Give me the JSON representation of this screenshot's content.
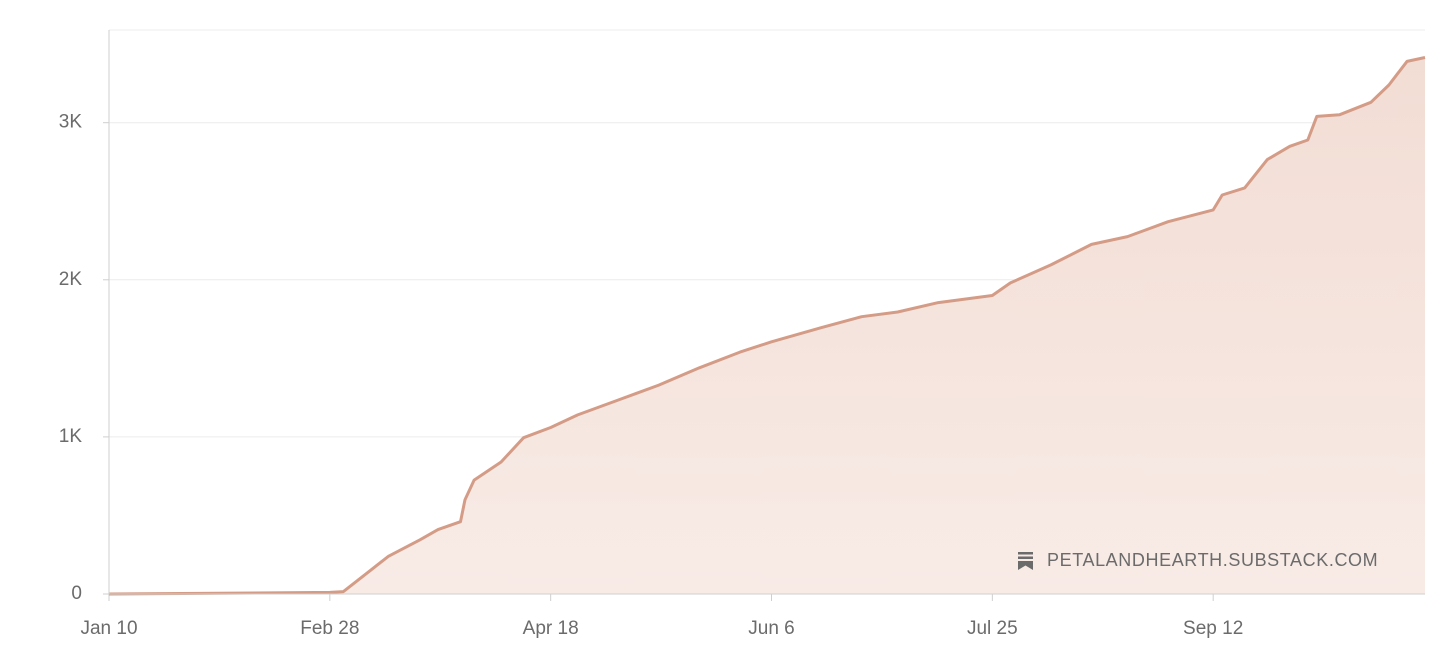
{
  "chart_data": {
    "type": "area",
    "watermark": "PETALANDHEARTH.SUBSTACK.COM",
    "x": [
      0,
      49,
      52,
      58,
      62,
      69,
      73,
      78,
      79,
      81,
      87,
      92,
      98,
      104,
      113,
      122,
      131,
      140,
      147,
      158,
      167,
      175,
      184,
      196,
      200,
      209,
      218,
      226,
      235,
      245,
      247,
      252,
      257,
      262,
      266,
      268,
      273,
      280,
      284,
      288,
      292
    ],
    "values": [
      0,
      10,
      15,
      150,
      240,
      345,
      410,
      460,
      600,
      725,
      840,
      995,
      1060,
      1140,
      1235,
      1330,
      1440,
      1540,
      1605,
      1695,
      1765,
      1795,
      1855,
      1900,
      1980,
      2095,
      2225,
      2275,
      2370,
      2445,
      2540,
      2585,
      2765,
      2850,
      2890,
      3040,
      3050,
      3130,
      3240,
      3390,
      3415
    ],
    "color": "#d49c86",
    "xlim": [
      0,
      292
    ],
    "xticks": [
      {
        "value": 0,
        "label": "Jan 10"
      },
      {
        "value": 49,
        "label": "Feb 28"
      },
      {
        "value": 98,
        "label": "Apr 18"
      },
      {
        "value": 147,
        "label": "Jun 6"
      },
      {
        "value": 196,
        "label": "Jul 25"
      },
      {
        "value": 245,
        "label": "Sep 12"
      }
    ],
    "ylim": [
      0,
      3590
    ],
    "yticks": [
      0,
      {
        "value": 1000,
        "label": "1K"
      },
      {
        "value": 2000,
        "label": "2K"
      },
      {
        "value": 3000,
        "label": "3K"
      }
    ],
    "grid": true
  }
}
